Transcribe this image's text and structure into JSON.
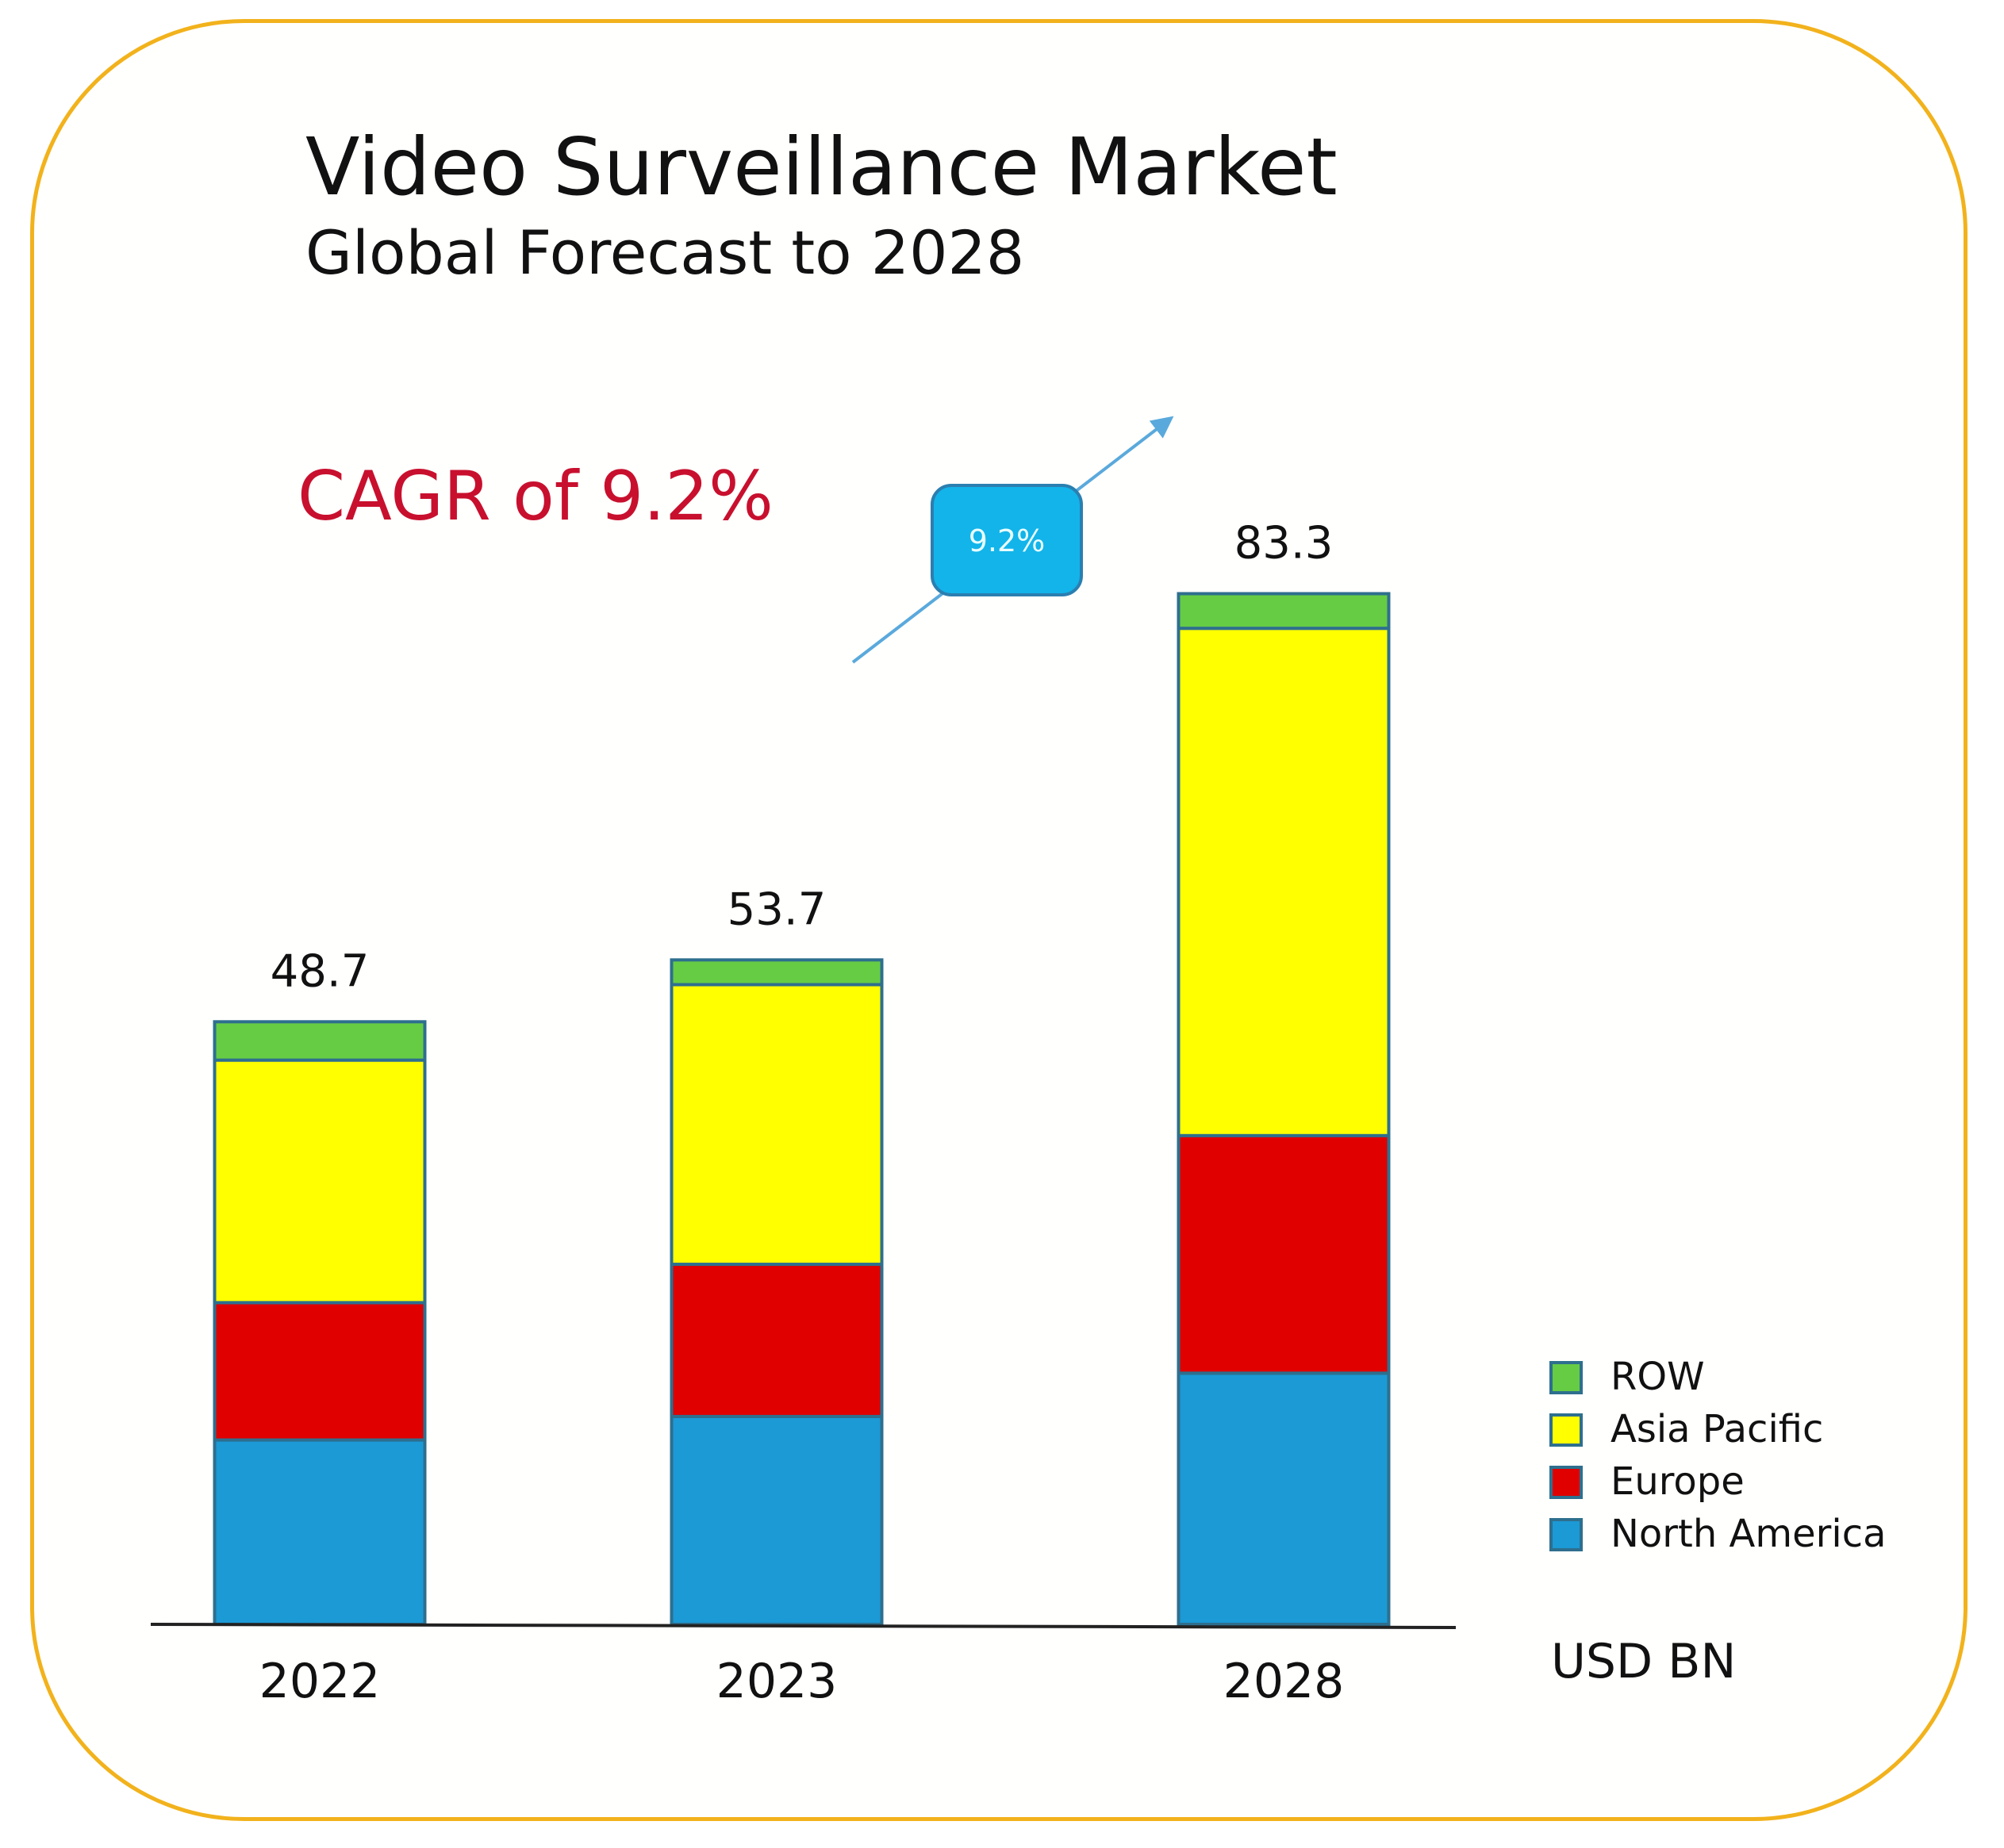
{
  "chart_data": {
    "type": "bar",
    "stacked": true,
    "title": "Video Surveillance Market",
    "subtitle": "Global Forecast to 2028",
    "annotation": "CAGR of 9.2%",
    "growth_badge": "9.2%",
    "unit_label": "USD BN",
    "categories": [
      "2022",
      "2023",
      "2028"
    ],
    "totals": [
      "48.7",
      "53.7",
      "83.3"
    ],
    "series": [
      {
        "name": "North America",
        "color": "#1b9ad6",
        "values": [
          14.9,
          16.8,
          20.3
        ]
      },
      {
        "name": "Europe",
        "color": "#e00000",
        "values": [
          11.1,
          12.3,
          19.2
        ]
      },
      {
        "name": "Asia Pacific",
        "color": "#ffff00",
        "values": [
          19.6,
          22.6,
          41.0
        ]
      },
      {
        "name": "ROW",
        "color": "#66cc44",
        "values": [
          3.1,
          2.0,
          2.8
        ]
      }
    ],
    "legend_order": [
      "ROW",
      "Asia Pacific",
      "Europe",
      "North America"
    ],
    "legend_position": "right",
    "ylim": [
      0,
      100
    ],
    "grid": false,
    "colors": {
      "frame": "#f2b21c",
      "title": "#111111",
      "annotation": "#c8102e",
      "bar_outline": "#2e6f8e",
      "arrow": "#5aa9dc",
      "badge_fill": "#12b4ea",
      "badge_text": "#e9ffff"
    }
  }
}
